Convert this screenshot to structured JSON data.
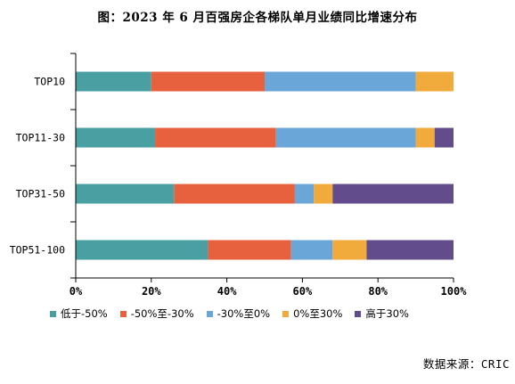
{
  "chart_data": {
    "type": "bar",
    "orientation": "horizontal",
    "stacked": true,
    "percent": true,
    "title": "图：2023 年 6 月百强房企各梯队单月业绩同比增速分布",
    "categories": [
      "TOP10",
      "TOP11-30",
      "TOP31-50",
      "TOP51-100"
    ],
    "series": [
      {
        "name": "低于-50%",
        "color": "#4a9fa3",
        "values": [
          20,
          21,
          26,
          35
        ]
      },
      {
        "name": "-50%至-30%",
        "color": "#e8613f",
        "values": [
          30,
          32,
          32,
          22
        ]
      },
      {
        "name": "-30%至0%",
        "color": "#6aa6d8",
        "values": [
          40,
          37,
          5,
          11
        ]
      },
      {
        "name": "0%至30%",
        "color": "#f0ab3c",
        "values": [
          10,
          5,
          5,
          9
        ]
      },
      {
        "name": "高于30%",
        "color": "#634c8c",
        "values": [
          0,
          5,
          32,
          23
        ]
      }
    ],
    "xlim": [
      0,
      100
    ],
    "xticks": [
      "0%",
      "20%",
      "40%",
      "60%",
      "80%",
      "100%"
    ],
    "legend_position": "bottom",
    "grid": false,
    "source": "数据来源：CRIC"
  }
}
